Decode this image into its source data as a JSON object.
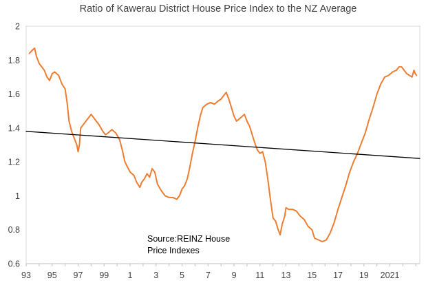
{
  "chart_data": {
    "type": "line",
    "title": "Ratio of Kawerau District House Price Index to the NZ Average",
    "xlabel": "",
    "ylabel": "",
    "x_tick_labels": [
      "93",
      "95",
      "97",
      "99",
      "1",
      "3",
      "5",
      "7",
      "9",
      "11",
      "13",
      "15",
      "17",
      "19",
      "2021"
    ],
    "x_tick_years": [
      1993,
      1995,
      1997,
      1999,
      2001,
      2003,
      2005,
      2007,
      2009,
      2011,
      2013,
      2015,
      2017,
      2019,
      2021
    ],
    "xlim": [
      1993,
      2023.3
    ],
    "ylim": [
      0.6,
      2.0
    ],
    "y_ticks": [
      0.6,
      0.8,
      1.0,
      1.2,
      1.4,
      1.6,
      1.8,
      2.0
    ],
    "y_tick_labels": [
      "0.6",
      "0.8",
      "1",
      "1.2",
      "1.4",
      "1.6",
      "1.8",
      "2"
    ],
    "grid": false,
    "legend": "none",
    "annotation": [
      "Source:REINZ House",
      "Price Indexes"
    ],
    "series": [
      {
        "kind": "ratio",
        "color": "#ED7D31",
        "points": [
          [
            1993.25,
            1.84
          ],
          [
            1993.5,
            1.86
          ],
          [
            1993.65,
            1.87
          ],
          [
            1993.8,
            1.82
          ],
          [
            1994.0,
            1.78
          ],
          [
            1994.2,
            1.76
          ],
          [
            1994.4,
            1.74
          ],
          [
            1994.6,
            1.7
          ],
          [
            1994.8,
            1.68
          ],
          [
            1995.0,
            1.72
          ],
          [
            1995.2,
            1.73
          ],
          [
            1995.5,
            1.71
          ],
          [
            1995.75,
            1.66
          ],
          [
            1996.0,
            1.63
          ],
          [
            1996.15,
            1.55
          ],
          [
            1996.3,
            1.44
          ],
          [
            1996.5,
            1.38
          ],
          [
            1996.7,
            1.34
          ],
          [
            1996.9,
            1.3
          ],
          [
            1997.0,
            1.26
          ],
          [
            1997.1,
            1.3
          ],
          [
            1997.2,
            1.4
          ],
          [
            1997.5,
            1.43
          ],
          [
            1997.8,
            1.46
          ],
          [
            1998.0,
            1.48
          ],
          [
            1998.2,
            1.46
          ],
          [
            1998.4,
            1.44
          ],
          [
            1998.6,
            1.42
          ],
          [
            1998.9,
            1.38
          ],
          [
            1999.1,
            1.36
          ],
          [
            1999.3,
            1.37
          ],
          [
            1999.6,
            1.39
          ],
          [
            1999.9,
            1.37
          ],
          [
            2000.2,
            1.33
          ],
          [
            2000.4,
            1.27
          ],
          [
            2000.6,
            1.2
          ],
          [
            2000.8,
            1.17
          ],
          [
            2001.0,
            1.14
          ],
          [
            2001.3,
            1.12
          ],
          [
            2001.5,
            1.08
          ],
          [
            2001.75,
            1.05
          ],
          [
            2001.9,
            1.08
          ],
          [
            2002.1,
            1.1
          ],
          [
            2002.3,
            1.13
          ],
          [
            2002.5,
            1.11
          ],
          [
            2002.7,
            1.16
          ],
          [
            2002.9,
            1.14
          ],
          [
            2003.1,
            1.07
          ],
          [
            2003.4,
            1.03
          ],
          [
            2003.7,
            1.0
          ],
          [
            2004.0,
            0.99
          ],
          [
            2004.3,
            0.99
          ],
          [
            2004.6,
            0.98
          ],
          [
            2004.8,
            1.0
          ],
          [
            2005.0,
            1.04
          ],
          [
            2005.2,
            1.06
          ],
          [
            2005.4,
            1.1
          ],
          [
            2005.6,
            1.17
          ],
          [
            2005.8,
            1.25
          ],
          [
            2006.0,
            1.32
          ],
          [
            2006.2,
            1.4
          ],
          [
            2006.4,
            1.47
          ],
          [
            2006.6,
            1.52
          ],
          [
            2006.9,
            1.54
          ],
          [
            2007.2,
            1.55
          ],
          [
            2007.5,
            1.54
          ],
          [
            2007.8,
            1.56
          ],
          [
            2008.0,
            1.57
          ],
          [
            2008.2,
            1.59
          ],
          [
            2008.4,
            1.61
          ],
          [
            2008.6,
            1.57
          ],
          [
            2008.8,
            1.52
          ],
          [
            2009.0,
            1.47
          ],
          [
            2009.2,
            1.44
          ],
          [
            2009.5,
            1.46
          ],
          [
            2009.8,
            1.48
          ],
          [
            2010.0,
            1.44
          ],
          [
            2010.2,
            1.41
          ],
          [
            2010.4,
            1.36
          ],
          [
            2010.6,
            1.31
          ],
          [
            2010.8,
            1.27
          ],
          [
            2011.0,
            1.25
          ],
          [
            2011.2,
            1.26
          ],
          [
            2011.4,
            1.2
          ],
          [
            2011.6,
            1.1
          ],
          [
            2011.8,
            0.98
          ],
          [
            2012.0,
            0.87
          ],
          [
            2012.2,
            0.85
          ],
          [
            2012.4,
            0.8
          ],
          [
            2012.55,
            0.77
          ],
          [
            2012.7,
            0.83
          ],
          [
            2012.9,
            0.88
          ],
          [
            2013.0,
            0.93
          ],
          [
            2013.2,
            0.92
          ],
          [
            2013.5,
            0.92
          ],
          [
            2013.8,
            0.91
          ],
          [
            2014.1,
            0.88
          ],
          [
            2014.4,
            0.86
          ],
          [
            2014.7,
            0.82
          ],
          [
            2015.0,
            0.8
          ],
          [
            2015.2,
            0.75
          ],
          [
            2015.5,
            0.74
          ],
          [
            2015.8,
            0.73
          ],
          [
            2016.1,
            0.74
          ],
          [
            2016.4,
            0.78
          ],
          [
            2016.7,
            0.84
          ],
          [
            2017.0,
            0.92
          ],
          [
            2017.3,
            0.99
          ],
          [
            2017.6,
            1.06
          ],
          [
            2017.9,
            1.14
          ],
          [
            2018.2,
            1.2
          ],
          [
            2018.5,
            1.25
          ],
          [
            2018.8,
            1.31
          ],
          [
            2019.1,
            1.37
          ],
          [
            2019.4,
            1.45
          ],
          [
            2019.7,
            1.52
          ],
          [
            2020.0,
            1.6
          ],
          [
            2020.3,
            1.66
          ],
          [
            2020.6,
            1.7
          ],
          [
            2020.9,
            1.71
          ],
          [
            2021.2,
            1.73
          ],
          [
            2021.5,
            1.74
          ],
          [
            2021.7,
            1.76
          ],
          [
            2021.9,
            1.76
          ],
          [
            2022.1,
            1.74
          ],
          [
            2022.3,
            1.72
          ],
          [
            2022.5,
            1.71
          ],
          [
            2022.7,
            1.7
          ],
          [
            2022.85,
            1.74
          ],
          [
            2022.95,
            1.72
          ],
          [
            2023.05,
            1.71
          ]
        ]
      },
      {
        "kind": "trend",
        "color": "#000000",
        "points": [
          [
            1993.0,
            1.38
          ],
          [
            2023.3,
            1.22
          ]
        ]
      }
    ]
  }
}
